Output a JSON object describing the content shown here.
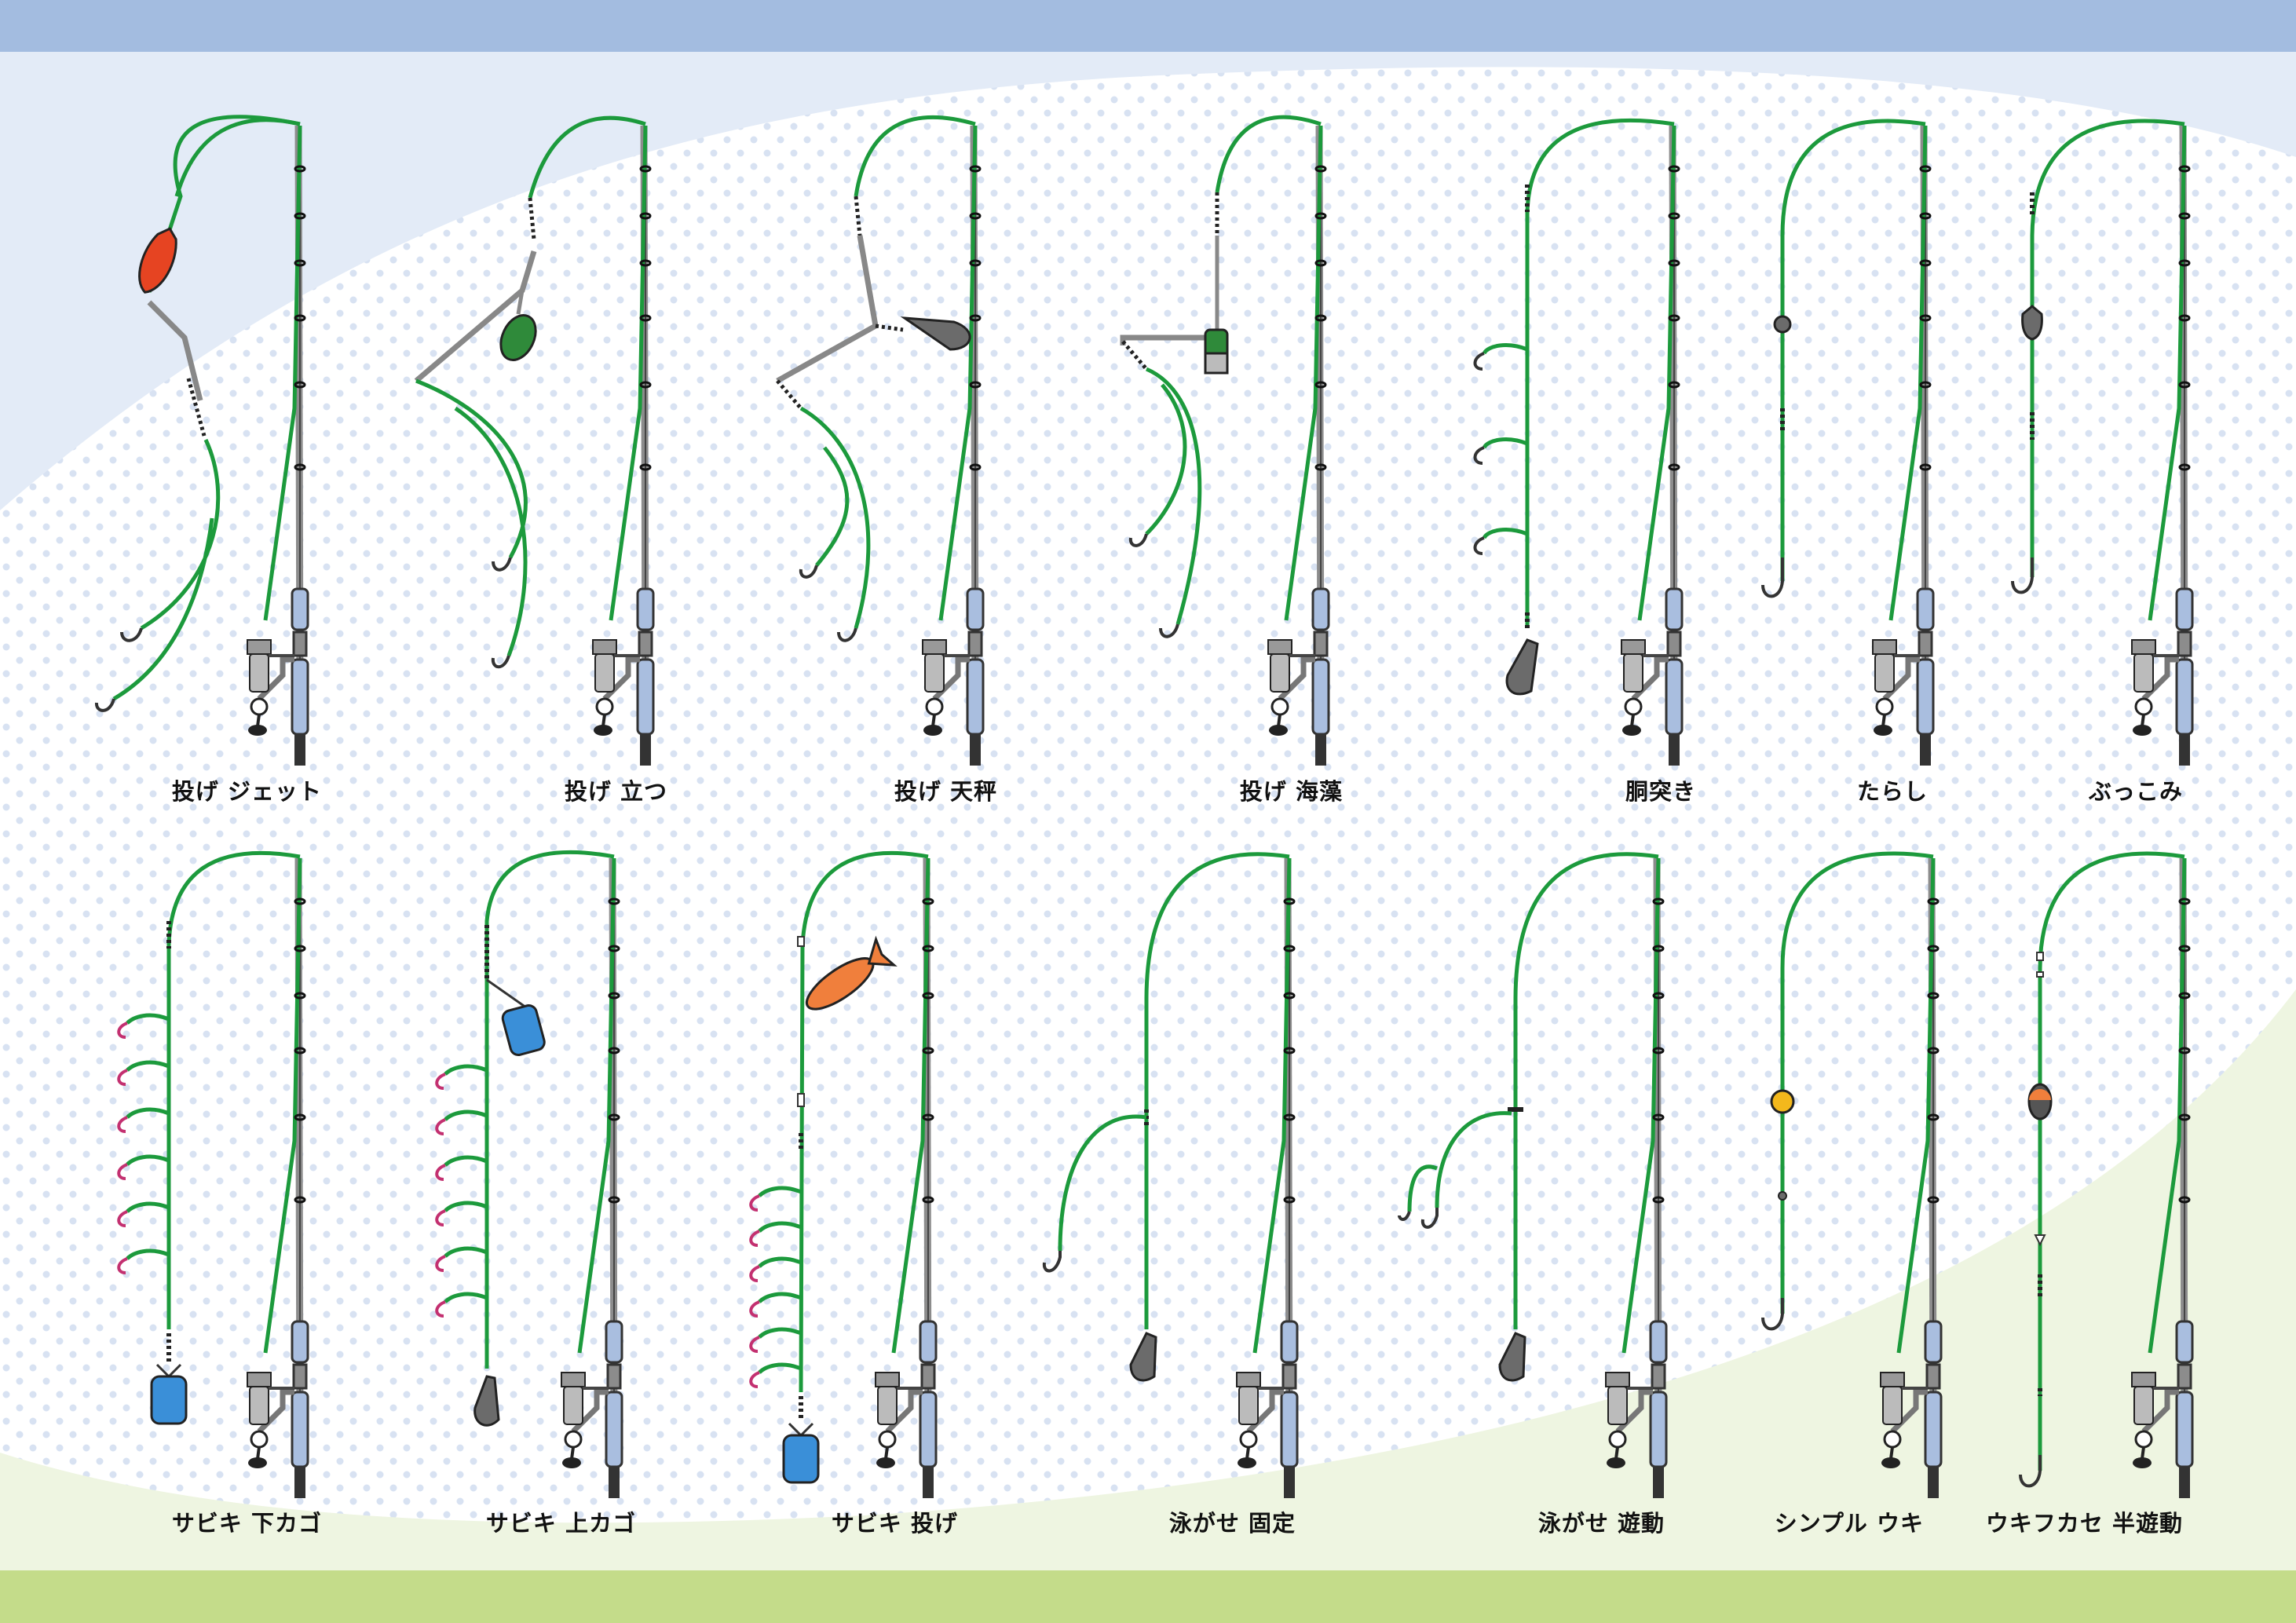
{
  "rigs": [
    {
      "id": "nage-jet",
      "label": "投げ ジェット"
    },
    {
      "id": "nage-tatsu",
      "label": "投げ 立つ"
    },
    {
      "id": "nage-tenbin",
      "label": "投げ 天秤"
    },
    {
      "id": "nage-kaisou",
      "label": "投げ 海藻"
    },
    {
      "id": "dozuki",
      "label": "胴突き"
    },
    {
      "id": "tarashi",
      "label": "たらし"
    },
    {
      "id": "bukkomi",
      "label": "ぶっこみ"
    },
    {
      "id": "sabiki-shitakago",
      "label": "サビキ 下カゴ"
    },
    {
      "id": "sabiki-uwakago",
      "label": "サビキ 上カゴ"
    },
    {
      "id": "sabiki-nage",
      "label": "サビキ 投げ"
    },
    {
      "id": "oyogase-kotei",
      "label": "泳がせ 固定"
    },
    {
      "id": "oyogase-yudou",
      "label": "泳がせ 遊動"
    },
    {
      "id": "simple-uki",
      "label": "シンプル ウキ"
    },
    {
      "id": "ukifukase-hanyudou",
      "label": "ウキフカセ 半遊動"
    }
  ],
  "colors": {
    "top_band": "#a3bce0",
    "bottom_band": "#c4dc8a",
    "line": "#1c9a3c",
    "rod": "#8c8c8c",
    "grip": "#a9bedf",
    "sinker": "#6b6b6b",
    "jet_float": "#e64422",
    "tenbin_sinker": "#2f8a3a",
    "cage": "#3a8fd8",
    "sabiki_rocket": "#f07f3c",
    "float_yellow": "#f3b81c",
    "float_dark": "#555555"
  }
}
